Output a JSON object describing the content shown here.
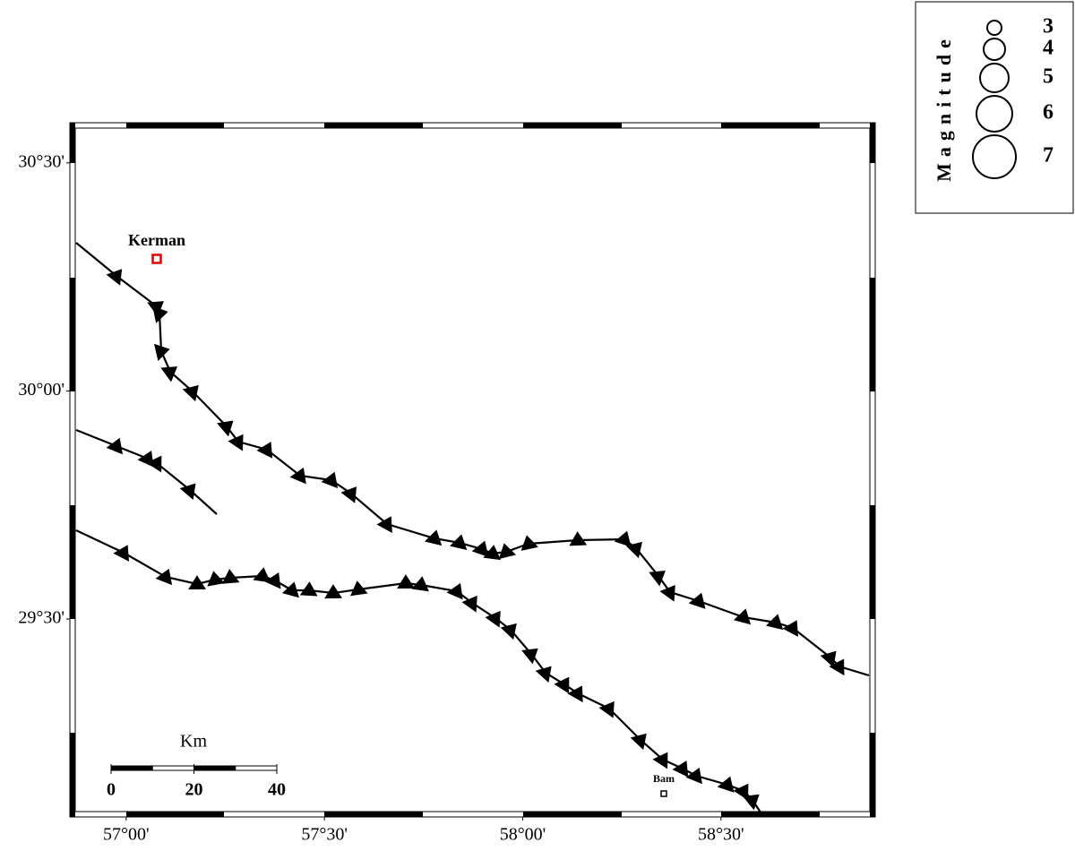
{
  "map": {
    "lon_range": [
      56.858,
      58.889
    ],
    "lat_range": [
      29.066,
      30.588
    ],
    "lon_ticks": [
      {
        "value": 57,
        "label": "57°00'"
      },
      {
        "value": 57.5,
        "label": "57°30'"
      },
      {
        "value": 58,
        "label": "58°00'"
      },
      {
        "value": 58.5,
        "label": "58°30'"
      }
    ],
    "lat_ticks": [
      {
        "value": 30.5,
        "label": "30°30'"
      },
      {
        "value": 30,
        "label": "30°00'"
      },
      {
        "value": 29.5,
        "label": "29°30'"
      }
    ],
    "cities": [
      {
        "name": "Kerman"
      },
      {
        "name": "Bam"
      }
    ],
    "scale_bar": {
      "unit": "Km",
      "ticks": [
        0,
        20,
        40
      ]
    },
    "legend": {
      "title": "Magnitude",
      "values": [
        3,
        4,
        5,
        6,
        7
      ]
    }
  }
}
